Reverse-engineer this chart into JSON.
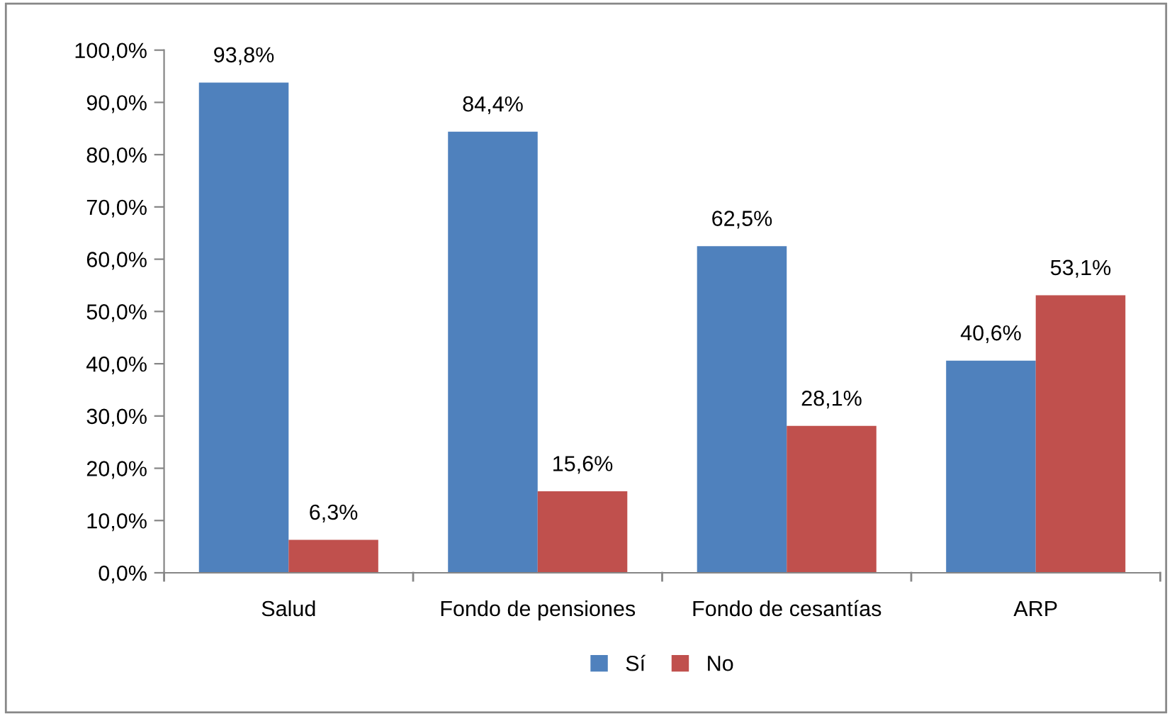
{
  "chart_data": {
    "type": "bar",
    "categories": [
      "Salud",
      "Fondo de pensiones",
      "Fondo de cesantías",
      "ARP"
    ],
    "series": [
      {
        "name": "Sí",
        "color": "#4f81bd",
        "values": [
          93.8,
          84.4,
          62.5,
          40.6
        ],
        "value_labels": [
          "93,8%",
          "84,4%",
          "62,5%",
          "40,6%"
        ]
      },
      {
        "name": "No",
        "color": "#c0504d",
        "values": [
          6.3,
          15.6,
          28.1,
          53.1
        ],
        "value_labels": [
          "6,3%",
          "15,6%",
          "28,1%",
          "53,1%"
        ]
      }
    ],
    "ylim": [
      0,
      100
    ],
    "yticks": [
      {
        "value": 0,
        "label": "0,0%"
      },
      {
        "value": 10,
        "label": "10,0%"
      },
      {
        "value": 20,
        "label": "20,0%"
      },
      {
        "value": 30,
        "label": "30,0%"
      },
      {
        "value": 40,
        "label": "40,0%"
      },
      {
        "value": 50,
        "label": "50,0%"
      },
      {
        "value": 60,
        "label": "60,0%"
      },
      {
        "value": 70,
        "label": "70,0%"
      },
      {
        "value": 80,
        "label": "80,0%"
      },
      {
        "value": 90,
        "label": "90,0%"
      },
      {
        "value": 100,
        "label": "100,0%"
      }
    ],
    "grid": false,
    "legend": "bottom"
  }
}
